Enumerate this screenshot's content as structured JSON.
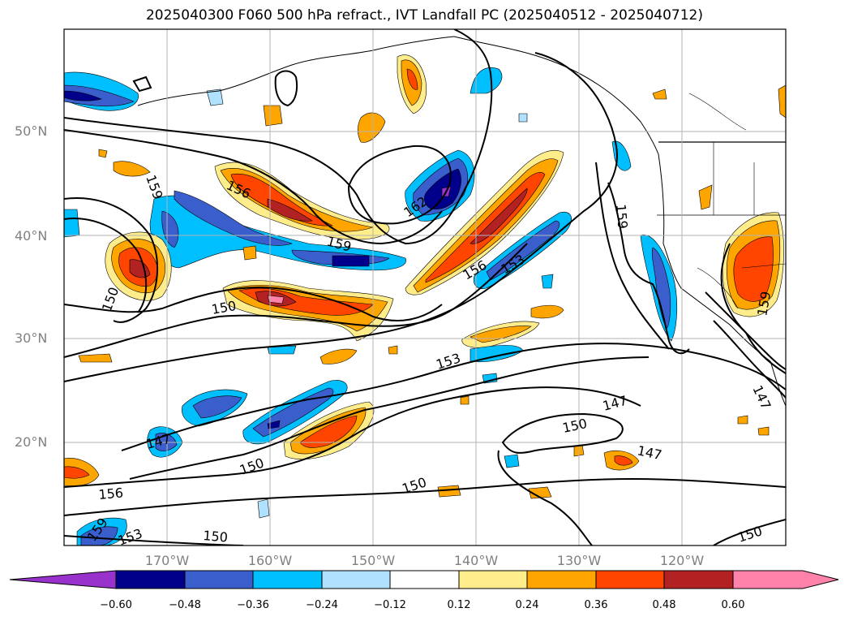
{
  "title": "2025040300 F060 500 hPa refract., IVT Landfall PC (2025040512 - 2025040712)",
  "lat_labels": [
    "50°N",
    "40°N",
    "30°N",
    "20°N"
  ],
  "lon_labels": [
    "170°W",
    "160°W",
    "150°W",
    "140°W",
    "130°W",
    "120°W"
  ],
  "contour_labels": [
    "156",
    "159",
    "162",
    "159",
    "156",
    "153",
    "150",
    "150",
    "153",
    "159",
    "159",
    "147",
    "150",
    "147",
    "150",
    "147",
    "150",
    "156",
    "159",
    "150",
    "150",
    "147",
    "153"
  ],
  "colorbar": {
    "ticks": [
      "−0.60",
      "−0.48",
      "−0.36",
      "−0.24",
      "−0.12",
      "0.12",
      "0.24",
      "0.36",
      "0.48",
      "0.60"
    ],
    "colors": [
      "#9932cc",
      "#00008b",
      "#3a5fcd",
      "#00bfff",
      "#b0e2ff",
      "#ffffff",
      "#ffec8b",
      "#ffa500",
      "#ff4500",
      "#b22222",
      "#ff82ab",
      "#ff82ab"
    ]
  }
}
